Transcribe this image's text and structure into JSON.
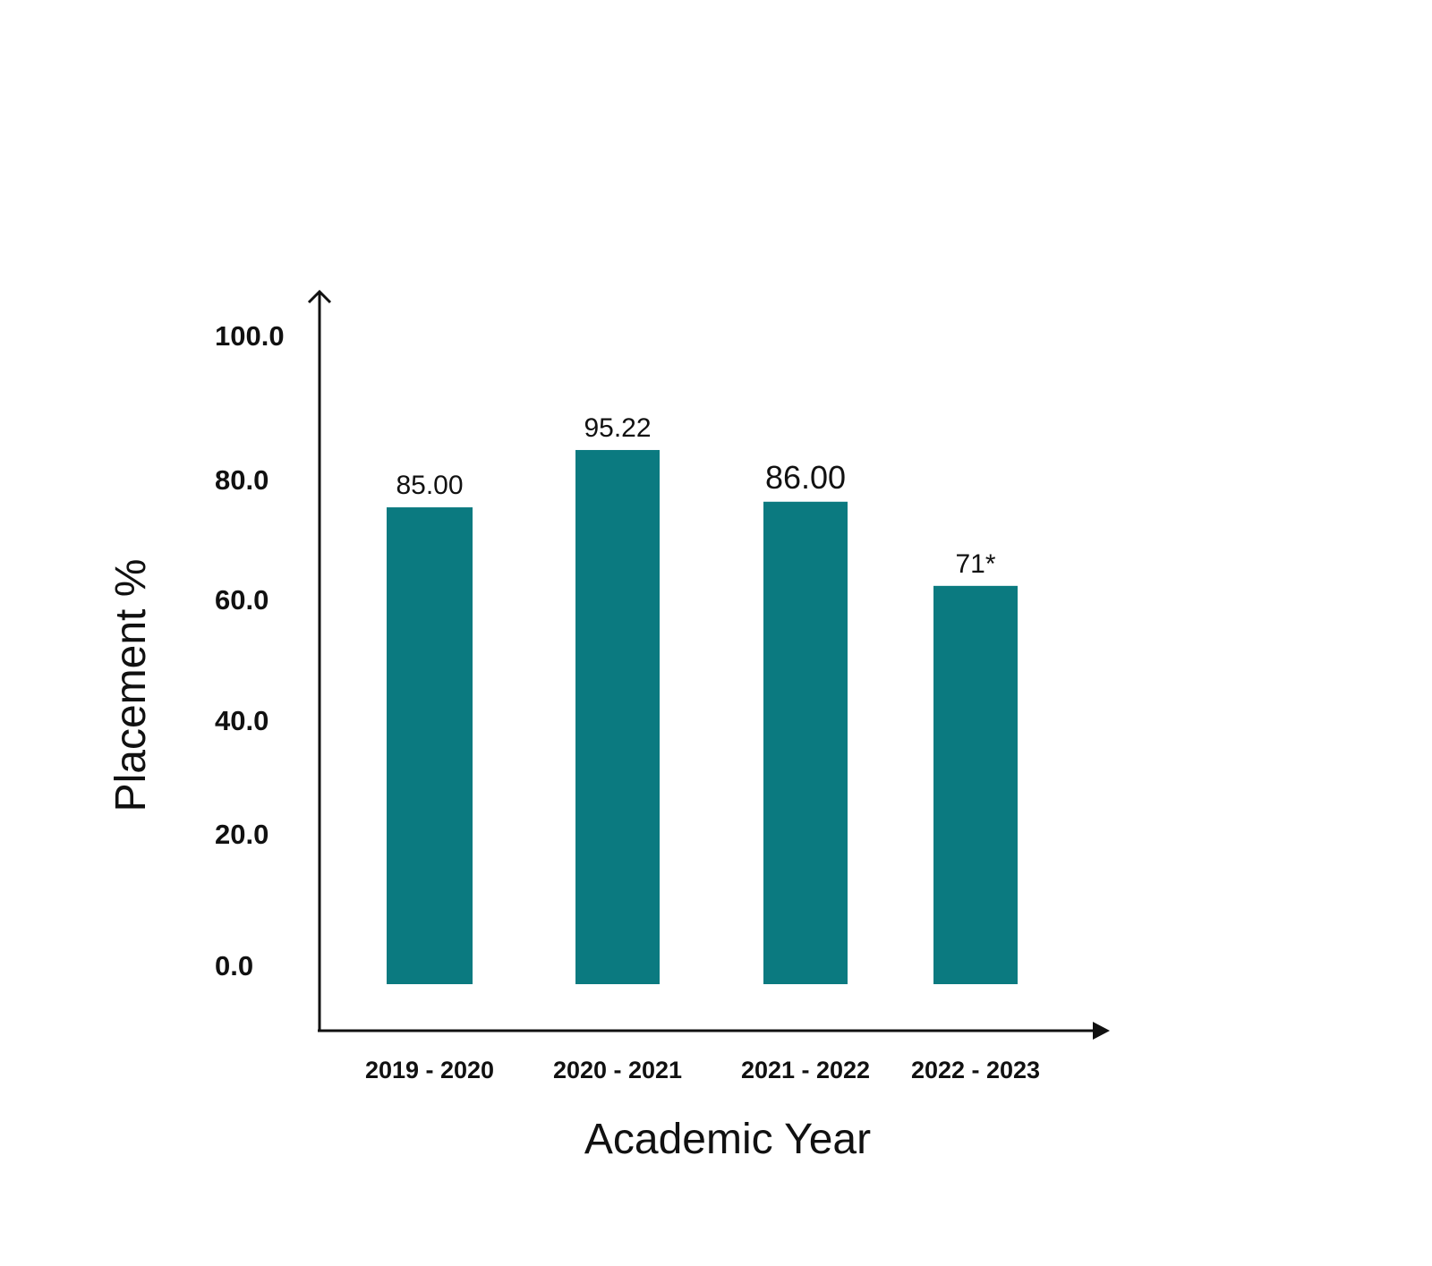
{
  "chart_data": {
    "type": "bar",
    "categories": [
      "2019 - 2020",
      "2020 - 2021",
      "2021 - 2022",
      "2022 - 2023"
    ],
    "values": [
      85.0,
      95.22,
      86.0,
      71
    ],
    "data_labels": [
      "85.00",
      "95.22",
      "86.00",
      "71*"
    ],
    "xlabel": "Academic Year",
    "ylabel": "Placement %",
    "yticks": [
      "0.0",
      "20.0",
      "40.0",
      "60.0",
      "80.0",
      "100.0"
    ],
    "ylim": [
      0,
      100
    ],
    "grid": false,
    "bar_color": "#0b7a80"
  }
}
